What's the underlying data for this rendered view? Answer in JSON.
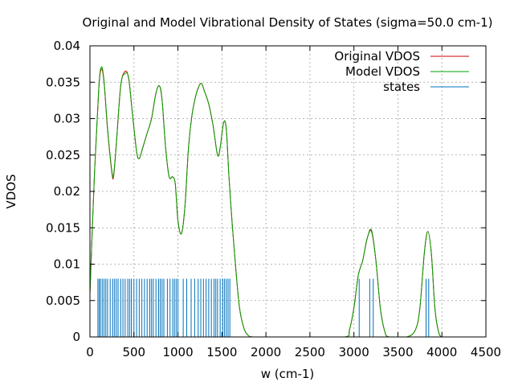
{
  "chart_data": {
    "type": "line",
    "title": "Original and Model Vibrational Density of States (sigma=50.0 cm-1)",
    "xlabel": "w (cm-1)",
    "ylabel": "VDOS",
    "xlim": [
      0,
      4500
    ],
    "ylim": [
      0,
      0.04
    ],
    "x_ticks": [
      "0",
      "500",
      "1000",
      "1500",
      "2000",
      "2500",
      "3000",
      "3500",
      "4000",
      "4500"
    ],
    "y_ticks": [
      "0",
      "0.005",
      "0.01",
      "0.015",
      "0.02",
      "0.025",
      "0.03",
      "0.035",
      "0.04"
    ],
    "grid": true,
    "legend_position": "top-right",
    "series": [
      {
        "name": "Original VDOS",
        "color": "#d00000",
        "x": [
          0,
          50,
          100,
          130,
          160,
          200,
          250,
          270,
          300,
          350,
          400,
          440,
          480,
          530,
          560,
          600,
          650,
          700,
          750,
          790,
          820,
          860,
          900,
          940,
          970,
          1000,
          1040,
          1080,
          1120,
          1160,
          1200,
          1240,
          1270,
          1300,
          1350,
          1400,
          1450,
          1480,
          1520,
          1550,
          1580,
          1620,
          1660,
          1700,
          1750,
          1800,
          1850,
          2000,
          2500,
          2900,
          2950,
          3000,
          3050,
          3100,
          3150,
          3200,
          3250,
          3300,
          3350,
          3400,
          3600,
          3700,
          3750,
          3800,
          3840,
          3880,
          3920,
          3960,
          4000,
          4100,
          4500
        ],
        "y": [
          0.006,
          0.022,
          0.034,
          0.0368,
          0.035,
          0.0285,
          0.0225,
          0.0222,
          0.0265,
          0.0345,
          0.0365,
          0.0355,
          0.031,
          0.0255,
          0.0245,
          0.026,
          0.028,
          0.03,
          0.0335,
          0.0345,
          0.0325,
          0.026,
          0.022,
          0.022,
          0.021,
          0.016,
          0.0142,
          0.018,
          0.026,
          0.0305,
          0.033,
          0.0345,
          0.0348,
          0.0338,
          0.032,
          0.029,
          0.025,
          0.026,
          0.0295,
          0.0285,
          0.022,
          0.015,
          0.009,
          0.004,
          0.0012,
          0.0002,
          0,
          0,
          0,
          0,
          0.001,
          0.004,
          0.0085,
          0.0105,
          0.0135,
          0.0145,
          0.0105,
          0.004,
          0.0008,
          0,
          0,
          0.001,
          0.004,
          0.0115,
          0.0145,
          0.0115,
          0.004,
          0.0008,
          0,
          0,
          0
        ]
      },
      {
        "name": "Model VDOS",
        "color": "#00a000",
        "x": [
          0,
          50,
          100,
          130,
          160,
          200,
          250,
          270,
          300,
          350,
          400,
          440,
          480,
          530,
          560,
          600,
          650,
          700,
          750,
          790,
          820,
          860,
          900,
          940,
          970,
          1000,
          1040,
          1080,
          1120,
          1160,
          1200,
          1240,
          1270,
          1300,
          1350,
          1400,
          1450,
          1480,
          1520,
          1550,
          1580,
          1620,
          1660,
          1700,
          1750,
          1800,
          1850,
          2000,
          2500,
          2900,
          2950,
          3000,
          3050,
          3100,
          3150,
          3200,
          3250,
          3300,
          3350,
          3400,
          3600,
          3700,
          3750,
          3800,
          3840,
          3880,
          3920,
          3960,
          4000,
          4100,
          4500
        ],
        "y": [
          0.006,
          0.022,
          0.0342,
          0.0371,
          0.0352,
          0.0287,
          0.0227,
          0.0224,
          0.0266,
          0.0346,
          0.0362,
          0.0356,
          0.031,
          0.0255,
          0.0245,
          0.026,
          0.028,
          0.03,
          0.0335,
          0.0345,
          0.0325,
          0.026,
          0.022,
          0.022,
          0.021,
          0.016,
          0.0142,
          0.018,
          0.026,
          0.0305,
          0.033,
          0.0345,
          0.0348,
          0.0338,
          0.032,
          0.029,
          0.025,
          0.026,
          0.0295,
          0.0285,
          0.022,
          0.015,
          0.009,
          0.004,
          0.0012,
          0.0002,
          0,
          0,
          0,
          0,
          0.001,
          0.004,
          0.0085,
          0.0105,
          0.0135,
          0.0147,
          0.0105,
          0.004,
          0.0008,
          0,
          0,
          0.001,
          0.004,
          0.0115,
          0.0145,
          0.0115,
          0.004,
          0.0008,
          0,
          0,
          0
        ]
      },
      {
        "name": "states",
        "color": "#0072bd",
        "type": "impulse",
        "height": 0.008,
        "x": [
          90,
          105,
          120,
          140,
          160,
          180,
          200,
          230,
          260,
          280,
          300,
          320,
          350,
          375,
          400,
          430,
          450,
          470,
          500,
          530,
          560,
          590,
          620,
          650,
          680,
          700,
          720,
          750,
          780,
          800,
          820,
          840,
          880,
          910,
          940,
          960,
          980,
          1000,
          1060,
          1100,
          1150,
          1190,
          1230,
          1260,
          1290,
          1320,
          1350,
          1380,
          1410,
          1430,
          1450,
          1480,
          1510,
          1530,
          1550,
          1570,
          1590,
          3060,
          3180,
          3220,
          3820,
          3850
        ]
      }
    ]
  }
}
